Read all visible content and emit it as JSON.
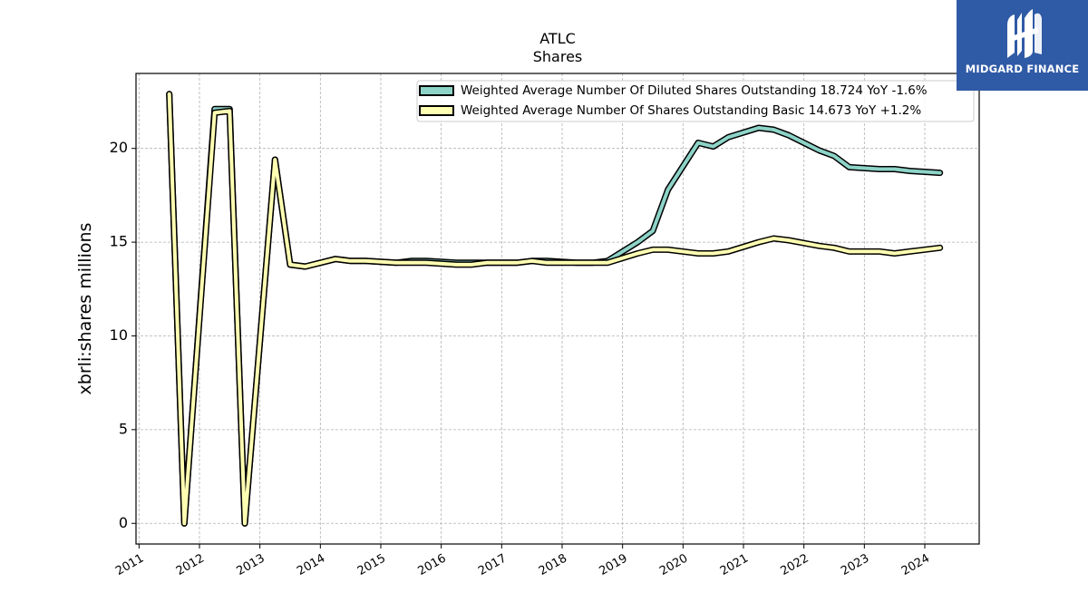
{
  "brand": {
    "name": "MIDGARD FINANCE",
    "color": "#2f5aa6"
  },
  "chart_data": {
    "type": "line",
    "title": "ATLC",
    "subtitle": "Shares",
    "ylabel": "xbrli:shares millions",
    "xlabel": "",
    "ylim": [
      -1.1,
      24
    ],
    "xlim": [
      2010.95,
      2024.9
    ],
    "y_ticks": [
      0,
      5,
      10,
      15,
      20
    ],
    "x_ticks": [
      "2011",
      "2012",
      "2013",
      "2014",
      "2015",
      "2016",
      "2017",
      "2018",
      "2019",
      "2020",
      "2021",
      "2022",
      "2023",
      "2024"
    ],
    "grid": true,
    "legend_position": "top-right",
    "series": [
      {
        "name": "Weighted Average Number Of Diluted Shares Outstanding  18.724 YoY -1.6%",
        "color": "#8dd3c7",
        "x": [
          2011.5,
          2011.75,
          2012.25,
          2012.5,
          2012.75,
          2013.25,
          2013.5,
          2013.75,
          2014.25,
          2014.5,
          2014.75,
          2015.25,
          2015.5,
          2015.75,
          2016.25,
          2016.5,
          2016.75,
          2017.25,
          2017.5,
          2017.75,
          2018.25,
          2018.5,
          2018.75,
          2019.25,
          2019.5,
          2019.75,
          2020.25,
          2020.5,
          2020.75,
          2021.25,
          2021.5,
          2021.75,
          2022.25,
          2022.5,
          2022.75,
          2023.25,
          2023.5,
          2023.75,
          2024.25
        ],
        "values": [
          22.9,
          0,
          22.1,
          22.1,
          0,
          19.4,
          13.8,
          13.7,
          14.1,
          14.0,
          14.0,
          13.9,
          14.0,
          14.0,
          13.9,
          13.9,
          13.9,
          13.9,
          14.0,
          14.0,
          13.9,
          13.9,
          14.0,
          15.0,
          15.6,
          17.8,
          20.3,
          20.1,
          20.6,
          21.1,
          21.0,
          20.7,
          19.9,
          19.6,
          19.0,
          18.9,
          18.9,
          18.8,
          18.7
        ]
      },
      {
        "name": "Weighted Average Number Of Shares Outstanding Basic  14.673 YoY +1.2%",
        "color": "#ffffb3",
        "x": [
          2011.5,
          2011.75,
          2012.25,
          2012.5,
          2012.75,
          2013.25,
          2013.5,
          2013.75,
          2014.25,
          2014.5,
          2014.75,
          2015.25,
          2015.5,
          2015.75,
          2016.25,
          2016.5,
          2016.75,
          2017.25,
          2017.5,
          2017.75,
          2018.25,
          2018.5,
          2018.75,
          2019.25,
          2019.5,
          2019.75,
          2020.25,
          2020.5,
          2020.75,
          2021.25,
          2021.5,
          2021.75,
          2022.25,
          2022.5,
          2022.75,
          2023.25,
          2023.5,
          2023.75,
          2024.25
        ],
        "values": [
          22.9,
          0,
          21.9,
          22.0,
          0,
          19.4,
          13.8,
          13.7,
          14.1,
          14.0,
          14.0,
          13.9,
          13.9,
          13.9,
          13.8,
          13.8,
          13.9,
          13.9,
          14.0,
          13.9,
          13.9,
          13.9,
          13.9,
          14.4,
          14.6,
          14.6,
          14.4,
          14.4,
          14.5,
          15.0,
          15.2,
          15.1,
          14.8,
          14.7,
          14.5,
          14.5,
          14.4,
          14.5,
          14.7
        ]
      }
    ]
  }
}
